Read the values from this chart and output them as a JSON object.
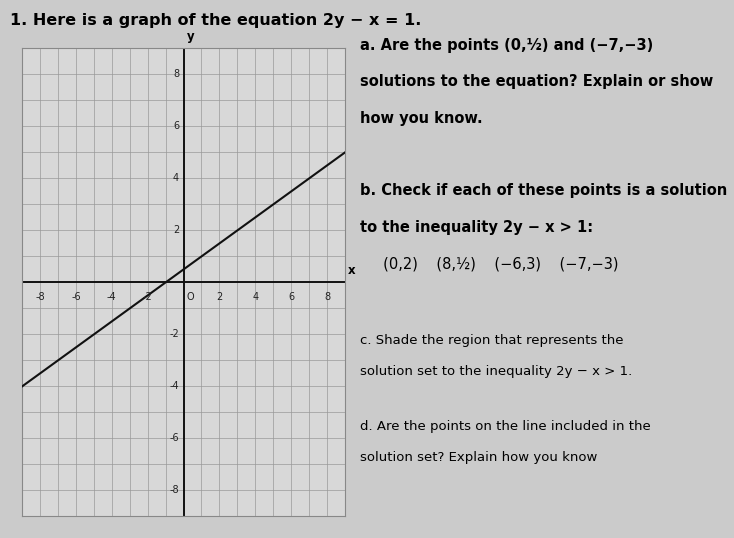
{
  "title": "1. Here is a graph of the equation 2y − x = 1.",
  "title_fontsize": 11.5,
  "title_fontweight": "bold",
  "bg_color": "#cbcbcb",
  "graph_bg": "#d8d8d8",
  "graph_border": "#888888",
  "xlim": [
    -9,
    9
  ],
  "ylim": [
    -9,
    9
  ],
  "xticks": [
    -8,
    -6,
    -4,
    -2,
    2,
    4,
    6,
    8
  ],
  "yticks": [
    -8,
    -6,
    -4,
    -2,
    2,
    4,
    6,
    8
  ],
  "line_color": "#111111",
  "grid_color": "#999999",
  "axis_color": "#111111",
  "tick_fontsize": 7,
  "right_blocks": [
    {
      "lines": [
        {
          "text": "a. Are the points (0,½) and (−7,−3)",
          "bold": true,
          "size": 10.5
        },
        {
          "text": "solutions to the equation? Explain or show",
          "bold": true,
          "size": 10.5
        },
        {
          "text": "how you know.",
          "bold": true,
          "size": 10.5
        }
      ]
    },
    {
      "lines": [
        {
          "text": "b. Check if each of these points is a solution",
          "bold": true,
          "size": 10.5
        },
        {
          "text": "to the inequality 2y − x > 1:",
          "bold": true,
          "size": 10.5
        },
        {
          "text": "     (0,2)    (8,½)    (−6,3)    (−7,−3)",
          "bold": false,
          "size": 10.5
        }
      ]
    },
    {
      "lines": [
        {
          "text": "c. Shade the region that represents the",
          "bold": false,
          "size": 9.5
        },
        {
          "text": "solution set to the inequality 2y − x > 1.",
          "bold": false,
          "size": 9.5
        }
      ]
    },
    {
      "lines": [
        {
          "text": "d. Are the points on the line included in the",
          "bold": false,
          "size": 9.5
        },
        {
          "text": "solution set? Explain how you know",
          "bold": false,
          "size": 9.5
        }
      ]
    }
  ]
}
